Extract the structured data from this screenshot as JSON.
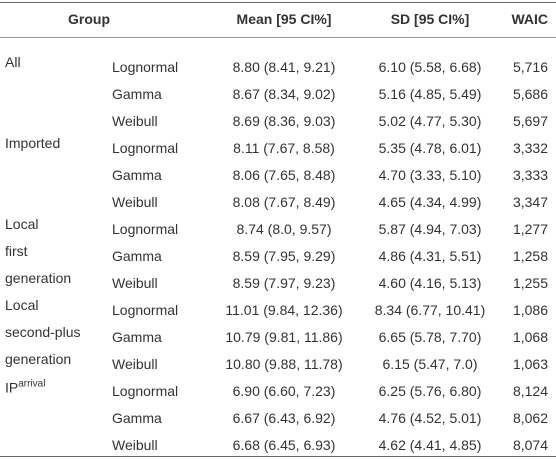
{
  "header": {
    "group": "Group",
    "mean": "Mean [95 CI%]",
    "sd": "SD [95 CI%]",
    "waic": "WAIC"
  },
  "groups": [
    {
      "label_lines": [
        "All"
      ],
      "rows": [
        {
          "model": "Lognormal",
          "mean": "8.80 (8.41, 9.21)",
          "sd": "6.10 (5.58, 6.68)",
          "waic": "5,716"
        },
        {
          "model": "Gamma",
          "mean": "8.67 (8.34, 9.02)",
          "sd": "5.16 (4.85, 5.49)",
          "waic": "5,686"
        },
        {
          "model": "Weibull",
          "mean": "8.69 (8.36, 9.03)",
          "sd": "5.02 (4.77, 5.30)",
          "waic": "5,697"
        }
      ]
    },
    {
      "label_lines": [
        "Imported"
      ],
      "rows": [
        {
          "model": "Lognormal",
          "mean": "8.11 (7.67, 8.58)",
          "sd": "5.35 (4.78, 6.01)",
          "waic": "3,332"
        },
        {
          "model": "Gamma",
          "mean": "8.06 (7.65, 8.48)",
          "sd": "4.70 (3.33, 5.10)",
          "waic": "3,333"
        },
        {
          "model": "Weibull",
          "mean": "8.08 (7.67, 8.49)",
          "sd": "4.65 (4.34, 4.99)",
          "waic": "3,347"
        }
      ]
    },
    {
      "label_lines": [
        "Local",
        "first",
        "generation"
      ],
      "rows": [
        {
          "model": "Lognormal",
          "mean": "8.74 (8.0, 9.57)",
          "sd": "5.87 (4.94, 7.03)",
          "waic": "1,277"
        },
        {
          "model": "Gamma",
          "mean": "8.59 (7.95, 9.29)",
          "sd": "4.86 (4.31, 5.51)",
          "waic": "1,258"
        },
        {
          "model": "Weibull",
          "mean": "8.59 (7.97, 9.23)",
          "sd": "4.60 (4.16, 5.13)",
          "waic": "1,255"
        }
      ]
    },
    {
      "label_lines": [
        "Local",
        "second-plus",
        "generation"
      ],
      "rows": [
        {
          "model": "Lognormal",
          "mean": "11.01 (9.84, 12.36)",
          "sd": "8.34 (6.77, 10.41)",
          "waic": "1,086"
        },
        {
          "model": "Gamma",
          "mean": "10.79 (9.81, 11.86)",
          "sd": "6.65 (5.78, 7.70)",
          "waic": "1,068"
        },
        {
          "model": "Weibull",
          "mean": "10.80 (9.88, 11.78)",
          "sd": "6.15 (5.47, 7.0)",
          "waic": "1,063"
        }
      ]
    },
    {
      "label_lines": [
        "IP"
      ],
      "label_sup": "arrival",
      "rows": [
        {
          "model": "Lognormal",
          "mean": "6.90 (6.60, 7.23)",
          "sd": "6.25 (5.76, 6.80)",
          "waic": "8,124"
        },
        {
          "model": "Gamma",
          "mean": "6.67 (6.43, 6.92)",
          "sd": "4.76 (4.52, 5.01)",
          "waic": "8,062"
        },
        {
          "model": "Weibull",
          "mean": "6.68 (6.45, 6.93)",
          "sd": "4.62 (4.41, 4.85)",
          "waic": "8,074"
        }
      ]
    }
  ]
}
